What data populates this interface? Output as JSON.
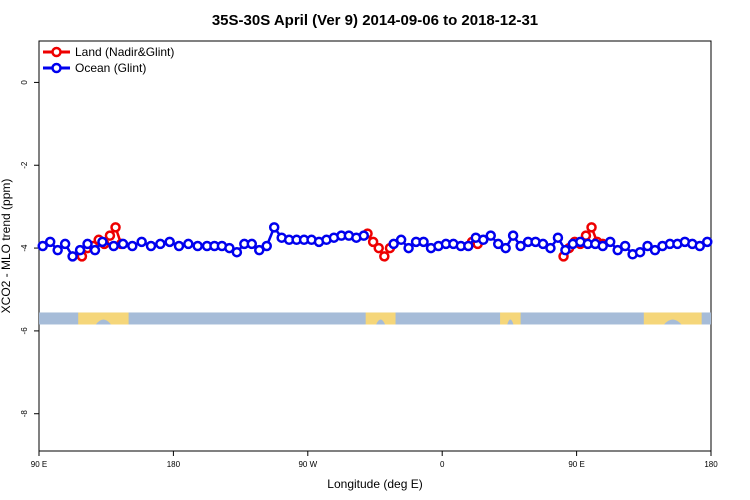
{
  "chart_data": {
    "type": "line",
    "title": "35S-30S April (Ver 9)   2014-09-06 to 2018-12-31",
    "xlabel": "Longitude (deg E)",
    "ylabel": "XCO2 - MLO trend (ppm)",
    "xlim": [
      90,
      450
    ],
    "ylim": [
      -8.9,
      1.0
    ],
    "x_tick_values": [
      90,
      162,
      234,
      306,
      378,
      450
    ],
    "x_tick_labels": [
      "90 E",
      "180",
      "90 W",
      "0",
      "90 E",
      "180"
    ],
    "y_ticks": [
      0,
      -2,
      -4,
      -6,
      -8
    ],
    "grid": false,
    "legend_position": "top-left",
    "colors": {
      "land": "#ee0000",
      "ocean": "#0000ee",
      "sea_band": "#a6bcd8",
      "land_band": "#f5d67a"
    },
    "series": [
      {
        "name": "Land (Nadir&Glint)",
        "color": "#ee0000",
        "x": [
          113,
          116,
          119,
          122,
          125,
          128,
          131,
          134,
          266,
          269,
          272,
          275,
          278,
          322,
          325,
          371,
          374,
          377,
          380,
          383,
          386,
          389,
          392
        ],
        "y": [
          -4.2,
          -4.0,
          -3.95,
          -3.8,
          -3.9,
          -3.7,
          -3.5,
          -3.9,
          -3.65,
          -3.85,
          -4.0,
          -4.2,
          -4.0,
          -3.85,
          -3.9,
          -4.2,
          -4.0,
          -3.85,
          -3.9,
          -3.7,
          -3.5,
          -3.85,
          -3.9
        ]
      },
      {
        "name": "Ocean (Glint)",
        "color": "#0000ee",
        "x": [
          92,
          96,
          100,
          104,
          108,
          112,
          116,
          120,
          124,
          130,
          135,
          140,
          145,
          150,
          155,
          160,
          165,
          170,
          175,
          180,
          184,
          188,
          192,
          196,
          200,
          204,
          208,
          212,
          216,
          220,
          224,
          228,
          232,
          236,
          240,
          244,
          248,
          252,
          256,
          260,
          264,
          280,
          284,
          288,
          292,
          296,
          300,
          304,
          308,
          312,
          316,
          320,
          324,
          328,
          332,
          336,
          340,
          344,
          348,
          352,
          356,
          360,
          364,
          368,
          372,
          376,
          380,
          384,
          388,
          392,
          396,
          400,
          404,
          408,
          412,
          416,
          420,
          424,
          428,
          432,
          436,
          440,
          444,
          448
        ],
        "y": [
          -3.95,
          -3.85,
          -4.05,
          -3.9,
          -4.2,
          -4.05,
          -3.9,
          -4.05,
          -3.85,
          -3.95,
          -3.9,
          -3.95,
          -3.85,
          -3.95,
          -3.9,
          -3.85,
          -3.95,
          -3.9,
          -3.95,
          -3.95,
          -3.95,
          -3.95,
          -4.0,
          -4.1,
          -3.9,
          -3.9,
          -4.05,
          -3.95,
          -3.5,
          -3.75,
          -3.8,
          -3.8,
          -3.8,
          -3.8,
          -3.85,
          -3.8,
          -3.75,
          -3.7,
          -3.7,
          -3.75,
          -3.7,
          -3.9,
          -3.8,
          -4.0,
          -3.85,
          -3.85,
          -4.0,
          -3.95,
          -3.9,
          -3.9,
          -3.95,
          -3.95,
          -3.75,
          -3.8,
          -3.7,
          -3.9,
          -4.0,
          -3.7,
          -3.95,
          -3.85,
          -3.85,
          -3.9,
          -4.0,
          -3.75,
          -4.05,
          -3.9,
          -3.85,
          -3.9,
          -3.9,
          -3.95,
          -3.85,
          -4.05,
          -3.95,
          -4.15,
          -4.1,
          -3.95,
          -4.05,
          -3.95,
          -3.9,
          -3.9,
          -3.85,
          -3.9,
          -3.95,
          -3.85
        ]
      }
    ],
    "land_mask": {
      "y": -5.7,
      "land_segments": [
        [
          111,
          138
        ],
        [
          265,
          281
        ],
        [
          337,
          348
        ],
        [
          414,
          445
        ]
      ]
    }
  }
}
